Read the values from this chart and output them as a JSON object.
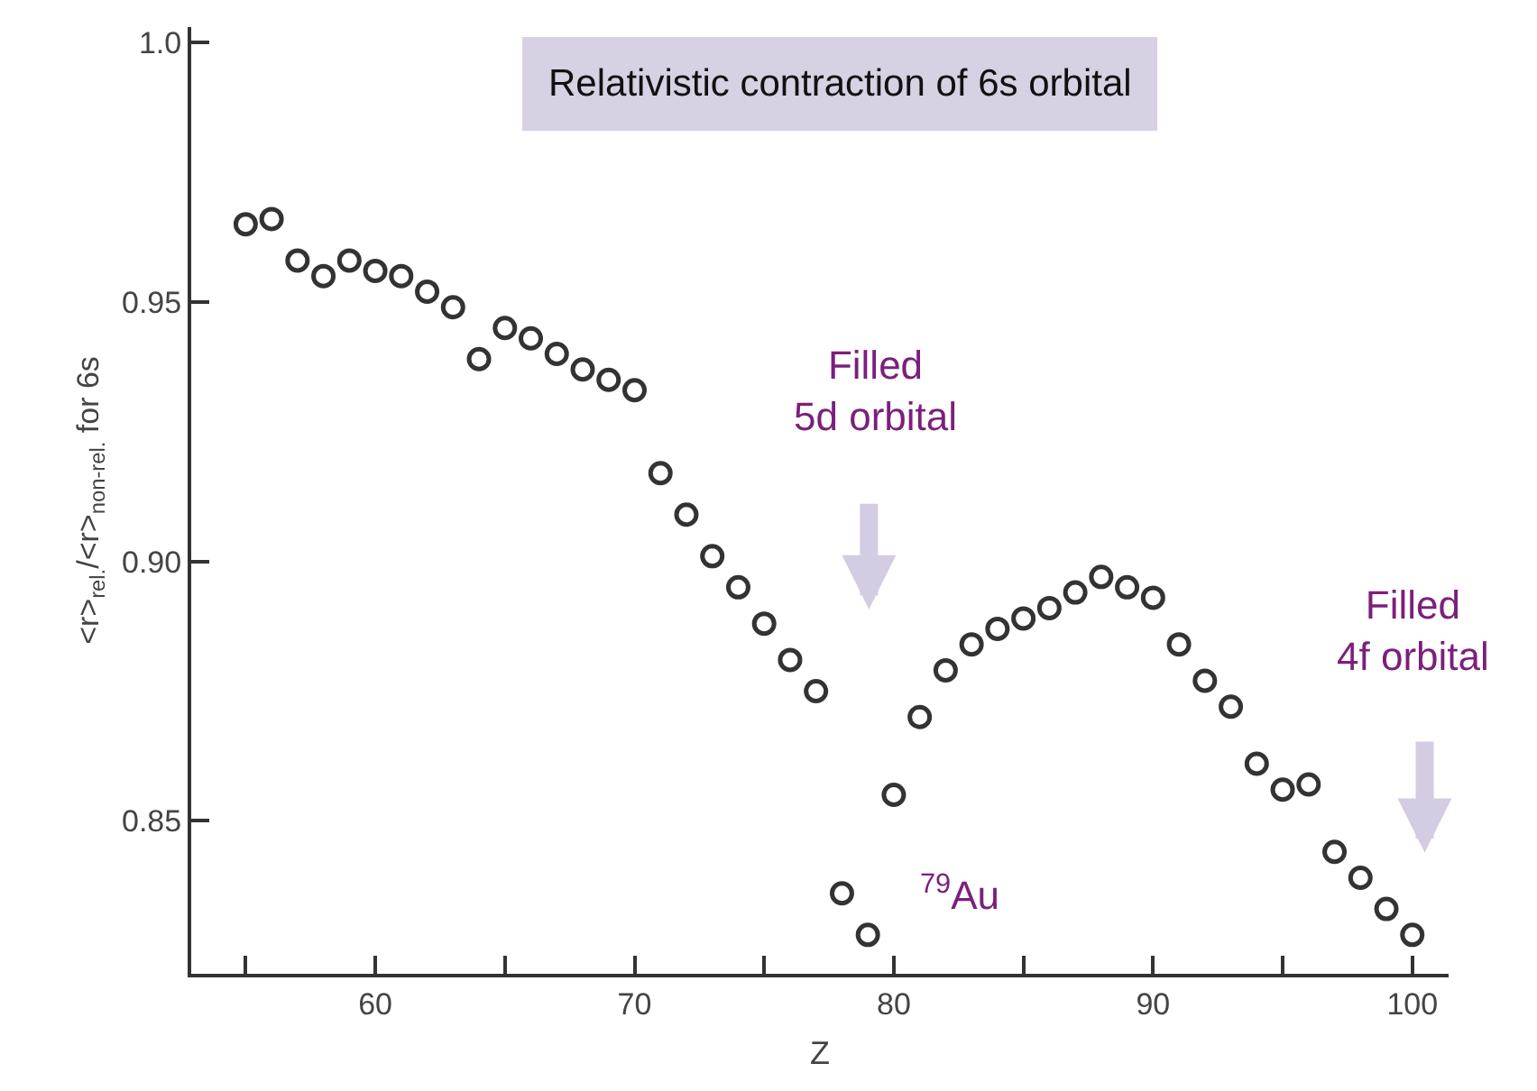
{
  "chart_data": {
    "type": "scatter",
    "title": "Relativistic contraction of 6s orbital",
    "xlabel": "Z",
    "ylabel": "<r>$_{rel.}$/<r>$_{non-rel.}$ for 6s",
    "x": [
      55,
      56,
      57,
      58,
      59,
      60,
      61,
      62,
      63,
      64,
      65,
      66,
      67,
      68,
      69,
      70,
      71,
      72,
      73,
      74,
      75,
      76,
      77,
      78,
      79,
      80,
      81,
      82,
      83,
      84,
      85,
      86,
      87,
      88,
      89,
      90,
      91,
      92,
      93,
      94,
      95,
      96,
      97,
      98,
      99,
      100
    ],
    "series": [
      {
        "color": "#333333",
        "values": [
          0.965,
          0.966,
          0.958,
          0.955,
          0.958,
          0.956,
          0.955,
          0.952,
          0.949,
          0.939,
          0.945,
          0.943,
          0.94,
          0.937,
          0.935,
          0.933,
          0.917,
          0.909,
          0.901,
          0.895,
          0.888,
          0.881,
          0.875,
          0.836,
          0.828,
          0.855,
          0.87,
          0.879,
          0.884,
          0.887,
          0.889,
          0.891,
          0.894,
          0.897,
          0.895,
          0.893,
          0.884,
          0.877,
          0.872,
          0.861,
          0.856,
          0.857,
          0.844,
          0.839,
          0.833,
          0.828
        ]
      }
    ],
    "marker": "circle",
    "xlim": [
      52.9,
      101.4
    ],
    "ylim": [
      0.8205,
      1.003
    ],
    "xticks": [
      {
        "value": 55,
        "label": null
      },
      60,
      {
        "value": 65,
        "label": null
      },
      70,
      {
        "value": 75,
        "label": null
      },
      80,
      {
        "value": 85,
        "label": null
      },
      90,
      {
        "value": 95,
        "label": null
      },
      100
    ],
    "yticks": [
      {
        "value": 0.85,
        "label": "0.85"
      },
      {
        "value": 0.9,
        "label": "0.90"
      },
      {
        "value": 0.95,
        "label": "0.95"
      },
      {
        "value": 1.0,
        "label": "1.0"
      }
    ],
    "annotations": [
      "Filled\n5d orbital",
      "Filled\n4f orbital",
      "$^{79}$Au"
    ]
  }
}
